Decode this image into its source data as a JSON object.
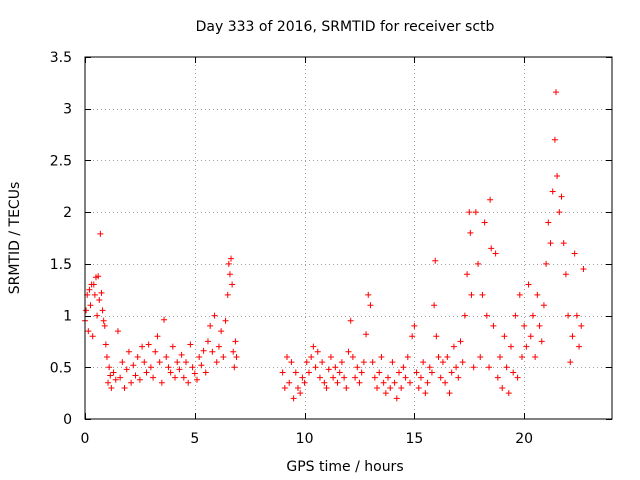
{
  "chart_data": {
    "type": "scatter",
    "title": "Day 333 of 2016, SRMTID for receiver sctb",
    "xlabel": "GPS time / hours",
    "ylabel": "SRMTID / TECUs",
    "xlim": [
      0,
      24
    ],
    "ylim": [
      0,
      3.5
    ],
    "xticks": [
      0,
      5,
      10,
      15,
      20
    ],
    "xtick_labels": [
      "0",
      "5",
      "10",
      "15",
      "20"
    ],
    "yticks": [
      0,
      0.5,
      1,
      1.5,
      2,
      2.5,
      3,
      3.5
    ],
    "ytick_labels": [
      "0",
      "0.5",
      "1",
      "1.5",
      "2",
      "2.5",
      "3",
      "3.5"
    ],
    "grid": true,
    "marker": "+",
    "color": "#ff0000",
    "series": [
      {
        "name": "sctb",
        "points": [
          [
            0.0,
            0.95
          ],
          [
            0.05,
            1.05
          ],
          [
            0.1,
            1.2
          ],
          [
            0.15,
            0.85
          ],
          [
            0.2,
            1.25
          ],
          [
            0.25,
            1.1
          ],
          [
            0.3,
            1.3
          ],
          [
            0.35,
            0.8
          ],
          [
            0.4,
            1.3
          ],
          [
            0.45,
            1.2
          ],
          [
            0.5,
            1.37
          ],
          [
            0.55,
            1.0
          ],
          [
            0.6,
            1.38
          ],
          [
            0.65,
            1.15
          ],
          [
            0.7,
            1.79
          ],
          [
            0.75,
            1.22
          ],
          [
            0.8,
            1.05
          ],
          [
            0.85,
            0.95
          ],
          [
            0.9,
            0.9
          ],
          [
            0.95,
            0.72
          ],
          [
            1.0,
            0.6
          ],
          [
            1.05,
            0.35
          ],
          [
            1.1,
            0.5
          ],
          [
            1.15,
            0.42
          ],
          [
            1.2,
            0.3
          ],
          [
            1.3,
            0.45
          ],
          [
            1.4,
            0.38
          ],
          [
            1.5,
            0.85
          ],
          [
            1.6,
            0.4
          ],
          [
            1.7,
            0.55
          ],
          [
            1.8,
            0.3
          ],
          [
            1.9,
            0.48
          ],
          [
            2.0,
            0.65
          ],
          [
            2.1,
            0.35
          ],
          [
            2.2,
            0.52
          ],
          [
            2.3,
            0.42
          ],
          [
            2.4,
            0.6
          ],
          [
            2.5,
            0.38
          ],
          [
            2.6,
            0.7
          ],
          [
            2.7,
            0.55
          ],
          [
            2.8,
            0.45
          ],
          [
            2.9,
            0.72
          ],
          [
            3.0,
            0.5
          ],
          [
            3.1,
            0.4
          ],
          [
            3.2,
            0.65
          ],
          [
            3.3,
            0.8
          ],
          [
            3.4,
            0.55
          ],
          [
            3.5,
            0.35
          ],
          [
            3.6,
            0.96
          ],
          [
            3.7,
            0.6
          ],
          [
            3.8,
            0.5
          ],
          [
            3.9,
            0.45
          ],
          [
            4.0,
            0.7
          ],
          [
            4.1,
            0.4
          ],
          [
            4.2,
            0.55
          ],
          [
            4.3,
            0.48
          ],
          [
            4.4,
            0.62
          ],
          [
            4.5,
            0.4
          ],
          [
            4.6,
            0.55
          ],
          [
            4.7,
            0.35
          ],
          [
            4.8,
            0.72
          ],
          [
            4.9,
            0.5
          ],
          [
            5.0,
            0.44
          ],
          [
            5.1,
            0.38
          ],
          [
            5.2,
            0.6
          ],
          [
            5.3,
            0.52
          ],
          [
            5.4,
            0.66
          ],
          [
            5.5,
            0.45
          ],
          [
            5.6,
            0.75
          ],
          [
            5.7,
            0.9
          ],
          [
            5.8,
            0.65
          ],
          [
            5.9,
            1.0
          ],
          [
            6.0,
            0.55
          ],
          [
            6.1,
            0.7
          ],
          [
            6.2,
            0.85
          ],
          [
            6.3,
            0.6
          ],
          [
            6.4,
            0.95
          ],
          [
            6.5,
            1.2
          ],
          [
            6.55,
            1.5
          ],
          [
            6.6,
            1.4
          ],
          [
            6.65,
            1.55
          ],
          [
            6.7,
            1.3
          ],
          [
            6.75,
            0.65
          ],
          [
            6.8,
            0.5
          ],
          [
            6.85,
            0.75
          ],
          [
            6.9,
            0.6
          ],
          [
            9.0,
            0.45
          ],
          [
            9.1,
            0.3
          ],
          [
            9.2,
            0.6
          ],
          [
            9.3,
            0.35
          ],
          [
            9.4,
            0.55
          ],
          [
            9.5,
            0.2
          ],
          [
            9.6,
            0.45
          ],
          [
            9.7,
            0.3
          ],
          [
            9.8,
            0.25
          ],
          [
            9.9,
            0.4
          ],
          [
            10.0,
            0.35
          ],
          [
            10.1,
            0.55
          ],
          [
            10.2,
            0.45
          ],
          [
            10.3,
            0.6
          ],
          [
            10.4,
            0.7
          ],
          [
            10.5,
            0.5
          ],
          [
            10.6,
            0.65
          ],
          [
            10.7,
            0.4
          ],
          [
            10.8,
            0.55
          ],
          [
            10.9,
            0.35
          ],
          [
            11.0,
            0.3
          ],
          [
            11.1,
            0.48
          ],
          [
            11.2,
            0.6
          ],
          [
            11.3,
            0.4
          ],
          [
            11.4,
            0.5
          ],
          [
            11.5,
            0.35
          ],
          [
            11.6,
            0.45
          ],
          [
            11.7,
            0.55
          ],
          [
            11.8,
            0.4
          ],
          [
            11.9,
            0.3
          ],
          [
            12.0,
            0.65
          ],
          [
            12.1,
            0.95
          ],
          [
            12.2,
            0.6
          ],
          [
            12.3,
            0.4
          ],
          [
            12.4,
            0.5
          ],
          [
            12.5,
            0.35
          ],
          [
            12.6,
            0.45
          ],
          [
            12.7,
            0.55
          ],
          [
            12.8,
            0.82
          ],
          [
            12.9,
            1.2
          ],
          [
            13.0,
            1.1
          ],
          [
            13.1,
            0.55
          ],
          [
            13.2,
            0.4
          ],
          [
            13.3,
            0.3
          ],
          [
            13.4,
            0.45
          ],
          [
            13.5,
            0.6
          ],
          [
            13.6,
            0.35
          ],
          [
            13.7,
            0.25
          ],
          [
            13.8,
            0.4
          ],
          [
            13.9,
            0.3
          ],
          [
            14.0,
            0.55
          ],
          [
            14.1,
            0.35
          ],
          [
            14.2,
            0.2
          ],
          [
            14.3,
            0.45
          ],
          [
            14.4,
            0.3
          ],
          [
            14.5,
            0.5
          ],
          [
            14.6,
            0.4
          ],
          [
            14.7,
            0.6
          ],
          [
            14.8,
            0.35
          ],
          [
            14.9,
            0.8
          ],
          [
            15.0,
            0.9
          ],
          [
            15.1,
            0.45
          ],
          [
            15.2,
            0.3
          ],
          [
            15.3,
            0.4
          ],
          [
            15.4,
            0.55
          ],
          [
            15.5,
            0.25
          ],
          [
            15.6,
            0.35
          ],
          [
            15.7,
            0.5
          ],
          [
            15.8,
            0.45
          ],
          [
            15.9,
            1.1
          ],
          [
            15.95,
            1.53
          ],
          [
            16.0,
            0.8
          ],
          [
            16.1,
            0.6
          ],
          [
            16.2,
            0.4
          ],
          [
            16.3,
            0.55
          ],
          [
            16.4,
            0.35
          ],
          [
            16.5,
            0.6
          ],
          [
            16.6,
            0.25
          ],
          [
            16.7,
            0.45
          ],
          [
            16.8,
            0.7
          ],
          [
            16.9,
            0.5
          ],
          [
            17.0,
            0.4
          ],
          [
            17.1,
            0.75
          ],
          [
            17.2,
            0.55
          ],
          [
            17.3,
            1.0
          ],
          [
            17.4,
            1.4
          ],
          [
            17.5,
            2.0
          ],
          [
            17.55,
            1.8
          ],
          [
            17.6,
            1.2
          ],
          [
            17.7,
            0.5
          ],
          [
            17.8,
            2.0
          ],
          [
            17.9,
            1.5
          ],
          [
            18.0,
            0.6
          ],
          [
            18.1,
            1.2
          ],
          [
            18.2,
            1.9
          ],
          [
            18.3,
            1.0
          ],
          [
            18.4,
            0.5
          ],
          [
            18.45,
            2.12
          ],
          [
            18.5,
            1.65
          ],
          [
            18.6,
            0.9
          ],
          [
            18.7,
            1.6
          ],
          [
            18.8,
            0.4
          ],
          [
            18.9,
            0.6
          ],
          [
            19.0,
            0.3
          ],
          [
            19.1,
            0.8
          ],
          [
            19.2,
            0.5
          ],
          [
            19.3,
            0.25
          ],
          [
            19.4,
            0.7
          ],
          [
            19.5,
            0.45
          ],
          [
            19.6,
            1.0
          ],
          [
            19.7,
            0.4
          ],
          [
            19.8,
            1.2
          ],
          [
            19.9,
            0.6
          ],
          [
            20.0,
            0.9
          ],
          [
            20.1,
            0.7
          ],
          [
            20.2,
            1.3
          ],
          [
            20.3,
            0.8
          ],
          [
            20.4,
            1.0
          ],
          [
            20.5,
            0.6
          ],
          [
            20.6,
            1.2
          ],
          [
            20.7,
            0.9
          ],
          [
            20.8,
            0.75
          ],
          [
            20.9,
            1.1
          ],
          [
            21.0,
            1.5
          ],
          [
            21.1,
            1.9
          ],
          [
            21.2,
            1.7
          ],
          [
            21.3,
            2.2
          ],
          [
            21.4,
            2.7
          ],
          [
            21.45,
            3.16
          ],
          [
            21.5,
            2.35
          ],
          [
            21.6,
            2.0
          ],
          [
            21.7,
            2.15
          ],
          [
            21.8,
            1.7
          ],
          [
            21.9,
            1.4
          ],
          [
            22.0,
            1.0
          ],
          [
            22.1,
            0.55
          ],
          [
            22.2,
            0.8
          ],
          [
            22.3,
            1.6
          ],
          [
            22.4,
            1.0
          ],
          [
            22.5,
            0.7
          ],
          [
            22.6,
            0.9
          ],
          [
            22.7,
            1.45
          ]
        ]
      }
    ]
  }
}
